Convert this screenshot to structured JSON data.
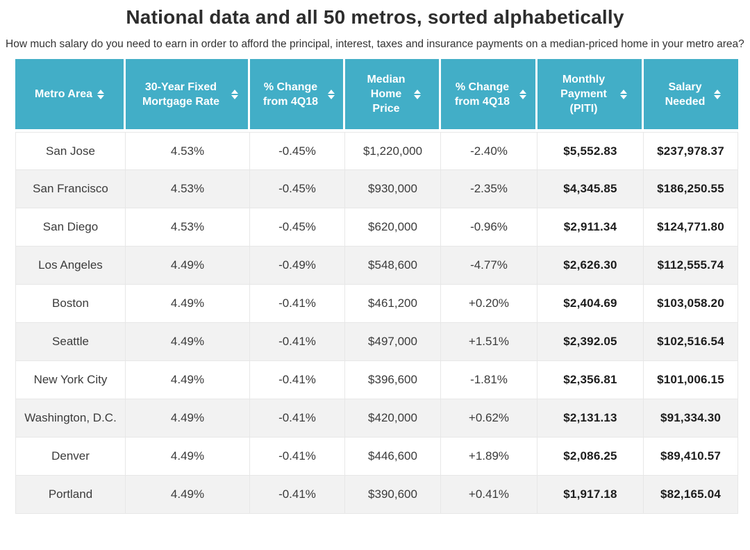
{
  "page": {
    "title": "National data and all 50 metros, sorted alphabetically",
    "subtitle": "How much salary do you need to earn in order to afford the principal, interest, taxes and insurance payments on a median-priced home in your metro area?"
  },
  "colors": {
    "header_bg": "#42aec7",
    "header_text": "#ffffff",
    "row_bg": "#ffffff",
    "row_alt_bg": "#f2f2f2",
    "cell_border": "#e7e7e7",
    "body_text": "#3b3b3b",
    "strong_text": "#1d1d1d"
  },
  "table": {
    "columns": [
      {
        "key": "metro-area",
        "label": "Metro Area",
        "sort_icon": "sort-updown-icon"
      },
      {
        "key": "mortgage-rate",
        "label": "30-Year Fixed Mortgage Rate",
        "sort_icon": "sort-updown-icon"
      },
      {
        "key": "rate-change",
        "label": "% Change from 4Q18",
        "sort_icon": "sort-updown-icon"
      },
      {
        "key": "median-price",
        "label": "Median Home Price",
        "sort_icon": "sort-updown-icon"
      },
      {
        "key": "price-change",
        "label": "% Change from 4Q18",
        "sort_icon": "sort-updown-icon"
      },
      {
        "key": "monthly-payment",
        "label": "Monthly Payment (PITI)",
        "sort_icon": "sort-updown-icon"
      },
      {
        "key": "salary-needed",
        "label": "Salary Needed",
        "sort_icon": "sort-updown-icon"
      }
    ],
    "rows": [
      [
        "San Jose",
        "4.53%",
        "-0.45%",
        "$1,220,000",
        "-2.40%",
        "$5,552.83",
        "$237,978.37"
      ],
      [
        "San Francisco",
        "4.53%",
        "-0.45%",
        "$930,000",
        "-2.35%",
        "$4,345.85",
        "$186,250.55"
      ],
      [
        "San Diego",
        "4.53%",
        "-0.45%",
        "$620,000",
        "-0.96%",
        "$2,911.34",
        "$124,771.80"
      ],
      [
        "Los Angeles",
        "4.49%",
        "-0.49%",
        "$548,600",
        "-4.77%",
        "$2,626.30",
        "$112,555.74"
      ],
      [
        "Boston",
        "4.49%",
        "-0.41%",
        "$461,200",
        "+0.20%",
        "$2,404.69",
        "$103,058.20"
      ],
      [
        "Seattle",
        "4.49%",
        "-0.41%",
        "$497,000",
        "+1.51%",
        "$2,392.05",
        "$102,516.54"
      ],
      [
        "New York City",
        "4.49%",
        "-0.41%",
        "$396,600",
        "-1.81%",
        "$2,356.81",
        "$101,006.15"
      ],
      [
        "Washington, D.C.",
        "4.49%",
        "-0.41%",
        "$420,000",
        "+0.62%",
        "$2,131.13",
        "$91,334.30"
      ],
      [
        "Denver",
        "4.49%",
        "-0.41%",
        "$446,600",
        "+1.89%",
        "$2,086.25",
        "$89,410.57"
      ],
      [
        "Portland",
        "4.49%",
        "-0.41%",
        "$390,600",
        "+0.41%",
        "$1,917.18",
        "$82,165.04"
      ]
    ]
  },
  "chart_data": {
    "type": "table",
    "title": "National data and all 50 metros, sorted alphabetically",
    "columns": [
      "Metro Area",
      "30-Year Fixed Mortgage Rate",
      "% Change from 4Q18",
      "Median Home Price",
      "% Change from 4Q18",
      "Monthly Payment (PITI)",
      "Salary Needed"
    ],
    "rows": [
      [
        "San Jose",
        "4.53%",
        "-0.45%",
        "$1,220,000",
        "-2.40%",
        "$5,552.83",
        "$237,978.37"
      ],
      [
        "San Francisco",
        "4.53%",
        "-0.45%",
        "$930,000",
        "-2.35%",
        "$4,345.85",
        "$186,250.55"
      ],
      [
        "San Diego",
        "4.53%",
        "-0.45%",
        "$620,000",
        "-0.96%",
        "$2,911.34",
        "$124,771.80"
      ],
      [
        "Los Angeles",
        "4.49%",
        "-0.49%",
        "$548,600",
        "-4.77%",
        "$2,626.30",
        "$112,555.74"
      ],
      [
        "Boston",
        "4.49%",
        "-0.41%",
        "$461,200",
        "+0.20%",
        "$2,404.69",
        "$103,058.20"
      ],
      [
        "Seattle",
        "4.49%",
        "-0.41%",
        "$497,000",
        "+1.51%",
        "$2,392.05",
        "$102,516.54"
      ],
      [
        "New York City",
        "4.49%",
        "-0.41%",
        "$396,600",
        "-1.81%",
        "$2,356.81",
        "$101,006.15"
      ],
      [
        "Washington, D.C.",
        "4.49%",
        "-0.41%",
        "$420,000",
        "+0.62%",
        "$2,131.13",
        "$91,334.30"
      ],
      [
        "Denver",
        "4.49%",
        "-0.41%",
        "$446,600",
        "+1.89%",
        "$2,086.25",
        "$89,410.57"
      ],
      [
        "Portland",
        "4.49%",
        "-0.41%",
        "$390,600",
        "+0.41%",
        "$1,917.18",
        "$82,165.04"
      ]
    ]
  }
}
